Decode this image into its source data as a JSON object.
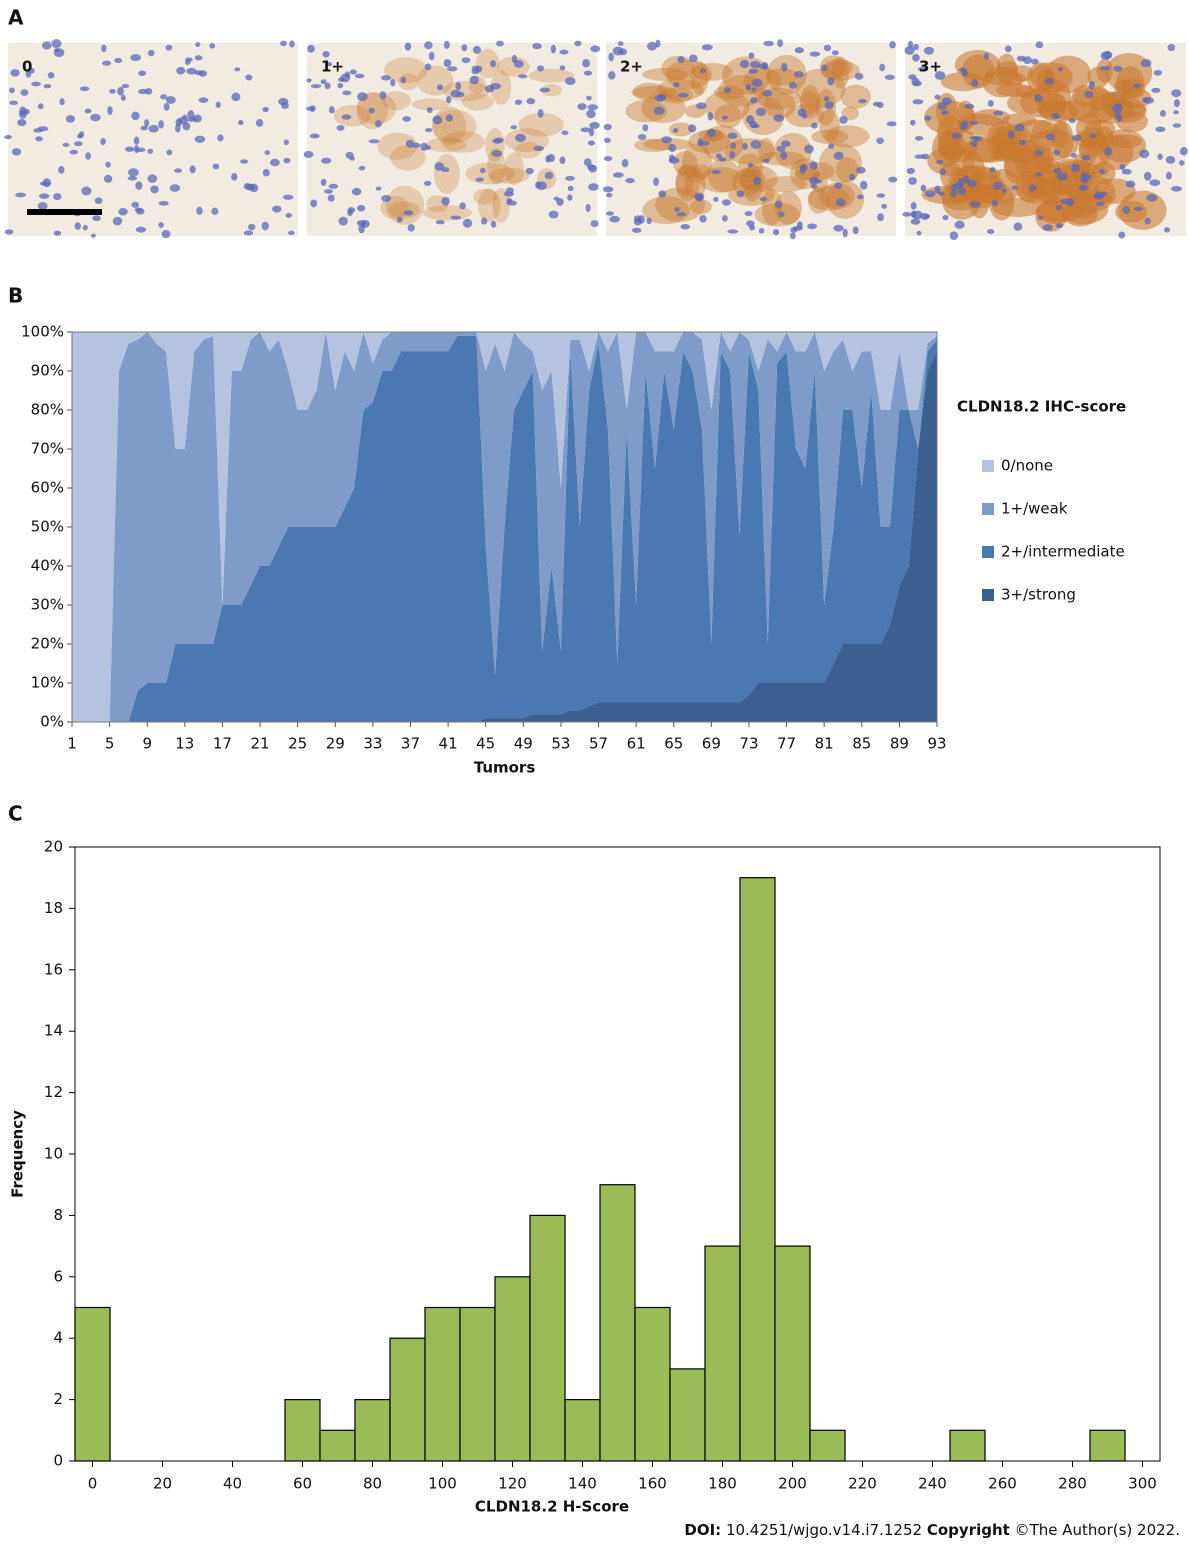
{
  "panel_labels": [
    "A",
    "B",
    "C"
  ],
  "images": [
    {
      "label": "0"
    },
    {
      "label": "1+"
    },
    {
      "label": "2+"
    },
    {
      "label": "3+"
    }
  ],
  "chart_data": [
    {
      "type": "area",
      "stacked": true,
      "legend_title": "CLDN18.2  IHC-score",
      "legend": "right",
      "xlabel": "Tumors",
      "x": [
        1,
        2,
        3,
        4,
        5,
        6,
        7,
        8,
        9,
        10,
        11,
        12,
        13,
        14,
        15,
        16,
        17,
        18,
        19,
        20,
        21,
        22,
        23,
        24,
        25,
        26,
        27,
        28,
        29,
        30,
        31,
        32,
        33,
        34,
        35,
        36,
        37,
        38,
        39,
        40,
        41,
        42,
        43,
        44,
        45,
        46,
        47,
        48,
        49,
        50,
        51,
        52,
        53,
        54,
        55,
        56,
        57,
        58,
        59,
        60,
        61,
        62,
        63,
        64,
        65,
        66,
        67,
        68,
        69,
        70,
        71,
        72,
        73,
        74,
        75,
        76,
        77,
        78,
        79,
        80,
        81,
        82,
        83,
        84,
        85,
        86,
        87,
        88,
        89,
        90,
        91,
        92,
        93
      ],
      "xlim": [
        1,
        93
      ],
      "xticks": [
        1,
        5,
        9,
        13,
        17,
        21,
        25,
        29,
        33,
        37,
        41,
        45,
        49,
        53,
        57,
        61,
        65,
        69,
        73,
        77,
        81,
        85,
        89,
        93
      ],
      "ylim": [
        0,
        100
      ],
      "yticks": [
        {
          "value": 0,
          "label": "0%"
        },
        {
          "value": 10,
          "label": "10%"
        },
        {
          "value": 20,
          "label": "20%"
        },
        {
          "value": 30,
          "label": "30%"
        },
        {
          "value": 40,
          "label": "40%"
        },
        {
          "value": 50,
          "label": "50%"
        },
        {
          "value": 60,
          "label": "60%"
        },
        {
          "value": 70,
          "label": "70%"
        },
        {
          "value": 80,
          "label": "80%"
        },
        {
          "value": 90,
          "label": "90%"
        },
        {
          "value": 100,
          "label": "100%"
        }
      ],
      "series": [
        {
          "name": "0/none",
          "color": "#b4c3df",
          "values": [
            100,
            100,
            100,
            100,
            100,
            10,
            3,
            2,
            0,
            3,
            5,
            30,
            30,
            5,
            2,
            1,
            70,
            10,
            10,
            2,
            0,
            5,
            2,
            10,
            20,
            20,
            15,
            0,
            15,
            5,
            10,
            0,
            8,
            2,
            0,
            0,
            0,
            0,
            0,
            0,
            0,
            0,
            0,
            0,
            10,
            3,
            10,
            0,
            3,
            5,
            15,
            10,
            40,
            2,
            2,
            10,
            0,
            5,
            0,
            20,
            0,
            0,
            5,
            5,
            5,
            0,
            0,
            2,
            20,
            0,
            5,
            0,
            2,
            10,
            2,
            5,
            0,
            5,
            5,
            0,
            10,
            5,
            2,
            10,
            5,
            5,
            20,
            20,
            5,
            20,
            20,
            3,
            1
          ]
        },
        {
          "name": "1+/weak",
          "color": "#7e9bca",
          "values": [
            0,
            0,
            0,
            0,
            0,
            90,
            97,
            90,
            90,
            87,
            85,
            50,
            50,
            75,
            78,
            79,
            0,
            60,
            60,
            63,
            60,
            55,
            53,
            40,
            30,
            30,
            35,
            50,
            35,
            40,
            30,
            20,
            10,
            8,
            10,
            5,
            5,
            5,
            5,
            5,
            5,
            1,
            1,
            1,
            45,
            85,
            40,
            20,
            12,
            5,
            67,
            50,
            42,
            3,
            48,
            5,
            3,
            20,
            85,
            5,
            70,
            10,
            30,
            5,
            20,
            5,
            10,
            23,
            60,
            5,
            5,
            52,
            3,
            5,
            78,
            3,
            5,
            25,
            30,
            10,
            60,
            45,
            18,
            10,
            35,
            10,
            30,
            30,
            15,
            0,
            10,
            2,
            1
          ]
        },
        {
          "name": "2+/intermediate",
          "color": "#4a78b0",
          "values": [
            0,
            0,
            0,
            0,
            0,
            0,
            0,
            8,
            10,
            10,
            10,
            20,
            20,
            20,
            20,
            20,
            30,
            30,
            30,
            35,
            40,
            40,
            45,
            50,
            50,
            50,
            50,
            50,
            50,
            55,
            60,
            80,
            82,
            90,
            90,
            95,
            95,
            95,
            95,
            95,
            95,
            99,
            99,
            99,
            44,
            11,
            49,
            79,
            84,
            88,
            16,
            38,
            16,
            92,
            47,
            81,
            92,
            70,
            10,
            70,
            25,
            85,
            60,
            85,
            70,
            90,
            85,
            70,
            15,
            90,
            85,
            43,
            88,
            75,
            10,
            82,
            85,
            60,
            55,
            80,
            20,
            35,
            60,
            60,
            40,
            65,
            30,
            25,
            45,
            40,
            0,
            5,
            3
          ]
        },
        {
          "name": "3+/strong",
          "color": "#3a6091",
          "values": [
            0,
            0,
            0,
            0,
            0,
            0,
            0,
            0,
            0,
            0,
            0,
            0,
            0,
            0,
            0,
            0,
            0,
            0,
            0,
            0,
            0,
            0,
            0,
            0,
            0,
            0,
            0,
            0,
            0,
            0,
            0,
            0,
            0,
            0,
            0,
            0,
            0,
            0,
            0,
            0,
            0,
            0,
            0,
            0,
            1,
            1,
            1,
            1,
            1,
            2,
            2,
            2,
            2,
            3,
            3,
            4,
            5,
            5,
            5,
            5,
            5,
            5,
            5,
            5,
            5,
            5,
            5,
            5,
            5,
            5,
            5,
            5,
            7,
            10,
            10,
            10,
            10,
            10,
            10,
            10,
            10,
            15,
            20,
            20,
            20,
            20,
            20,
            25,
            35,
            40,
            70,
            90,
            95
          ]
        }
      ]
    },
    {
      "type": "histogram",
      "xlabel": "CLDN18.2 H-Score",
      "ylabel": "Frequency",
      "color": "#9bbb59",
      "bins": [
        -5,
        5,
        15,
        25,
        35,
        45,
        55,
        65,
        75,
        85,
        95,
        105,
        115,
        125,
        135,
        145,
        155,
        165,
        175,
        185,
        195,
        205,
        215,
        225,
        235,
        245,
        255,
        265,
        275,
        285,
        295
      ],
      "values": [
        5,
        0,
        0,
        0,
        0,
        0,
        2,
        1,
        2,
        4,
        5,
        5,
        6,
        8,
        2,
        9,
        5,
        3,
        7,
        19,
        7,
        1,
        0,
        0,
        0,
        1,
        0,
        0,
        0,
        1
      ],
      "xlim": [
        -5,
        305
      ],
      "xticks": [
        0,
        20,
        40,
        60,
        80,
        100,
        120,
        140,
        160,
        180,
        200,
        220,
        240,
        260,
        280,
        300
      ],
      "ylim": [
        0,
        20
      ],
      "yticks": [
        0,
        2,
        4,
        6,
        8,
        10,
        12,
        14,
        16,
        18,
        20
      ]
    }
  ],
  "footer": {
    "doi_label": "DOI:",
    "doi": "10.4251/wjgo.v14.i7.1252",
    "copyright_label": "Copyright",
    "copyright": "©The Author(s) 2022."
  }
}
